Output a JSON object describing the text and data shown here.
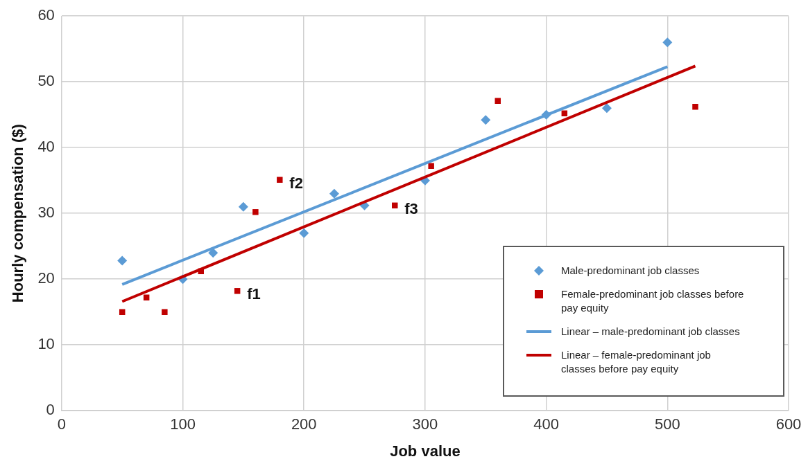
{
  "chart_data": {
    "type": "scatter",
    "xlabel": "Job value",
    "ylabel": "Hourly compensation ($)",
    "xlim": [
      0,
      600
    ],
    "xticks": [
      0,
      100,
      200,
      300,
      400,
      500,
      600
    ],
    "ylim": [
      0,
      60
    ],
    "yticks": [
      0,
      10,
      20,
      30,
      40,
      50,
      60
    ],
    "grid": true,
    "legend": "bottom right",
    "series": [
      {
        "name": "Male-predominant job classes",
        "type": "scatter",
        "marker": "diamond",
        "color": "#5b9bd5",
        "x": [
          50,
          100,
          125,
          150,
          200,
          225,
          250,
          300,
          350,
          400,
          450,
          500
        ],
        "values": [
          22.8,
          20,
          24,
          31,
          27,
          33,
          31.2,
          35,
          44.2,
          45,
          46,
          56
        ]
      },
      {
        "name": "Female-predominant job classes before pay equity",
        "type": "scatter",
        "marker": "square",
        "color": "#c00000",
        "x": [
          50,
          70,
          85,
          115,
          145,
          160,
          180,
          275,
          305,
          360,
          415,
          523
        ],
        "values": [
          15,
          17.2,
          15,
          21.2,
          18.2,
          30.2,
          35.1,
          31.2,
          37.2,
          47.1,
          45.2,
          46.2
        ]
      },
      {
        "name": "Linear – male-predominant job classes",
        "type": "line",
        "marker": "none",
        "line_style": "solid",
        "color": "#5b9bd5",
        "x": [
          50,
          500
        ],
        "values": [
          19.2,
          52.3
        ]
      },
      {
        "name": "Linear – female-predominant job classes before pay equity",
        "type": "line",
        "marker": "none",
        "line_style": "solid",
        "color": "#c00000",
        "x": [
          50,
          523
        ],
        "values": [
          16.6,
          52.4
        ]
      }
    ],
    "annotations": [
      {
        "text": "f1",
        "x": 145,
        "y": 18.2
      },
      {
        "text": "f2",
        "x": 180,
        "y": 35.1
      },
      {
        "text": "f3",
        "x": 275,
        "y": 31.2
      }
    ]
  }
}
